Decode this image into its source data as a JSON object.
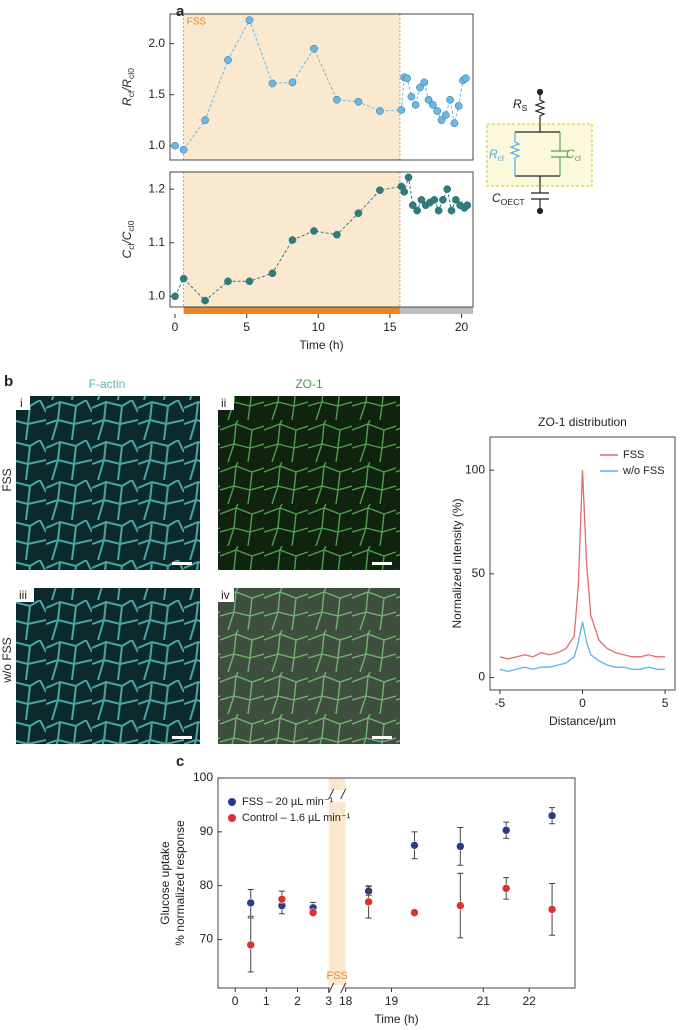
{
  "panels": [
    "a",
    "b",
    "c"
  ],
  "circuit": {
    "rs": [
      "R",
      "S"
    ],
    "rcl": [
      "R",
      "cl"
    ],
    "ccl": [
      "C",
      "cl"
    ],
    "coect": [
      "C",
      "OECT"
    ]
  },
  "micrographs": {
    "columns": [
      "F-actin",
      "ZO-1"
    ],
    "rows": [
      "FSS",
      "w/o FSS"
    ],
    "panels": [
      "i",
      "ii",
      "iii",
      "iv"
    ]
  },
  "chart_data": [
    {
      "type": "line",
      "ylabel": [
        "R",
        "cl",
        "/R",
        "cl0"
      ],
      "x": [
        0,
        0.6,
        2.1,
        3.7,
        5.2,
        6.8,
        8.2,
        9.7,
        11.3,
        12.8,
        14.3,
        15.8,
        16.0,
        16.2,
        16.5,
        16.8,
        17.1,
        17.4,
        17.7,
        18.0,
        18.3,
        18.6,
        18.9,
        19.2,
        19.5,
        19.8,
        20.1,
        20.3
      ],
      "series": [
        {
          "color": "#6ab7e8",
          "values": [
            1.0,
            0.96,
            1.25,
            1.84,
            2.23,
            1.61,
            1.62,
            1.95,
            1.45,
            1.43,
            1.34,
            1.35,
            1.67,
            1.66,
            1.48,
            1.4,
            1.57,
            1.62,
            1.45,
            1.4,
            1.34,
            1.25,
            1.3,
            1.45,
            1.22,
            1.39,
            1.64,
            1.66
          ]
        }
      ],
      "xlim": [
        -0.35,
        20.8
      ],
      "ylim": [
        0.86,
        2.29
      ],
      "yticks": [
        {
          "value": 1,
          "label": "1.0"
        },
        1.5,
        {
          "value": 2,
          "label": "2.0"
        }
      ],
      "shade": {
        "label": "FSS",
        "range": [
          0.6,
          15.7
        ],
        "color": "#fbe9cf"
      }
    },
    {
      "type": "line",
      "ylabel": [
        "C",
        "cl",
        "/C",
        "cl0"
      ],
      "xlabel": "Time (h)",
      "x": [
        0,
        0.6,
        2.1,
        3.7,
        5.2,
        6.8,
        8.2,
        9.7,
        11.3,
        12.8,
        14.3,
        15.8,
        16.0,
        16.3,
        16.6,
        16.9,
        17.2,
        17.5,
        17.8,
        18.1,
        18.4,
        18.7,
        19.0,
        19.3,
        19.6,
        19.9,
        20.2,
        20.4
      ],
      "series": [
        {
          "color": "#2f7d78",
          "values": [
            1.0,
            1.033,
            0.992,
            1.028,
            1.028,
            1.043,
            1.105,
            1.122,
            1.115,
            1.155,
            1.198,
            1.205,
            1.195,
            1.222,
            1.17,
            1.16,
            1.18,
            1.17,
            1.175,
            1.18,
            1.16,
            1.18,
            1.2,
            1.16,
            1.18,
            1.17,
            1.165,
            1.17
          ]
        }
      ],
      "xlim": [
        -0.35,
        20.8
      ],
      "ylim": [
        0.98,
        1.232
      ],
      "xticks": [
        0,
        5,
        10,
        15,
        20
      ],
      "yticks": [
        {
          "value": 1,
          "label": "1.0"
        },
        1.1,
        1.2
      ],
      "shade": {
        "range": [
          0.6,
          15.7
        ],
        "color": "#fbe9cf",
        "bar_colors": [
          "#e8842a",
          "#bdbdbd"
        ]
      }
    },
    {
      "type": "line",
      "title": "ZO-1 distribution",
      "xlabel": "Distance/µm",
      "ylabel": "Normalized intensity (%)",
      "x": [
        -5,
        -4.5,
        -4,
        -3.5,
        -3,
        -2.5,
        -2,
        -1.5,
        -1,
        -0.5,
        -0.25,
        0,
        0.25,
        0.5,
        1,
        1.5,
        2,
        2.5,
        3,
        3.5,
        4,
        4.5,
        5
      ],
      "series": [
        {
          "name": "FSS",
          "color": "#e06c6c",
          "values": [
            10,
            9,
            10,
            11,
            10,
            12,
            11,
            12,
            14,
            20,
            45,
            100,
            55,
            30,
            18,
            14,
            12,
            11,
            10,
            10,
            11,
            10,
            10
          ]
        },
        {
          "name": "w/o FSS",
          "color": "#5ab4e8",
          "values": [
            4,
            3,
            4,
            5,
            4,
            5,
            5,
            6,
            7,
            10,
            17,
            27,
            17,
            11,
            8,
            6,
            5,
            5,
            4,
            4,
            5,
            4,
            4
          ]
        }
      ],
      "xlim": [
        -5.6,
        5.6
      ],
      "ylim": [
        -6,
        116
      ],
      "xticks": [
        -5,
        0,
        5
      ],
      "yticks": [
        0,
        50,
        100
      ],
      "legend": "upper right"
    },
    {
      "type": "scatter",
      "xlabel": "Time (h)",
      "ylabel": [
        "Glucose uptake",
        "% normalized response"
      ],
      "x": [
        0.5,
        1.5,
        2.5,
        18.5,
        19.5,
        20.5,
        21.5,
        22.5
      ],
      "series": [
        {
          "name": "FSS – 20 µL min⁻¹",
          "color": "#2b3a8c",
          "values": [
            76.8,
            76.3,
            75.9,
            79.0,
            87.5,
            87.3,
            90.3,
            93.0
          ],
          "errors": [
            2.5,
            1.5,
            1.0,
            0.8,
            2.5,
            3.5,
            1.5,
            1.5
          ]
        },
        {
          "name": "Control – 1.6 µL min⁻¹",
          "color": "#d8332c",
          "values": [
            69.0,
            77.5,
            75.0,
            77.0,
            75.0,
            76.3,
            79.5,
            75.6
          ],
          "errors": [
            5.0,
            1.5,
            0.5,
            3.0,
            0.5,
            6.0,
            2.0,
            4.8
          ]
        }
      ],
      "xlim": [
        -0.55,
        23
      ],
      "xbreak": [
        3,
        18
      ],
      "ylim": [
        61,
        100
      ],
      "xticks": [
        0,
        1,
        2,
        3,
        18,
        19,
        21,
        22
      ],
      "yticks": [
        70,
        80,
        90,
        100
      ],
      "shade": {
        "label": "FSS",
        "range": [
          3,
          18
        ],
        "color": "#fbe9cf"
      },
      "legend": "upper left"
    }
  ]
}
